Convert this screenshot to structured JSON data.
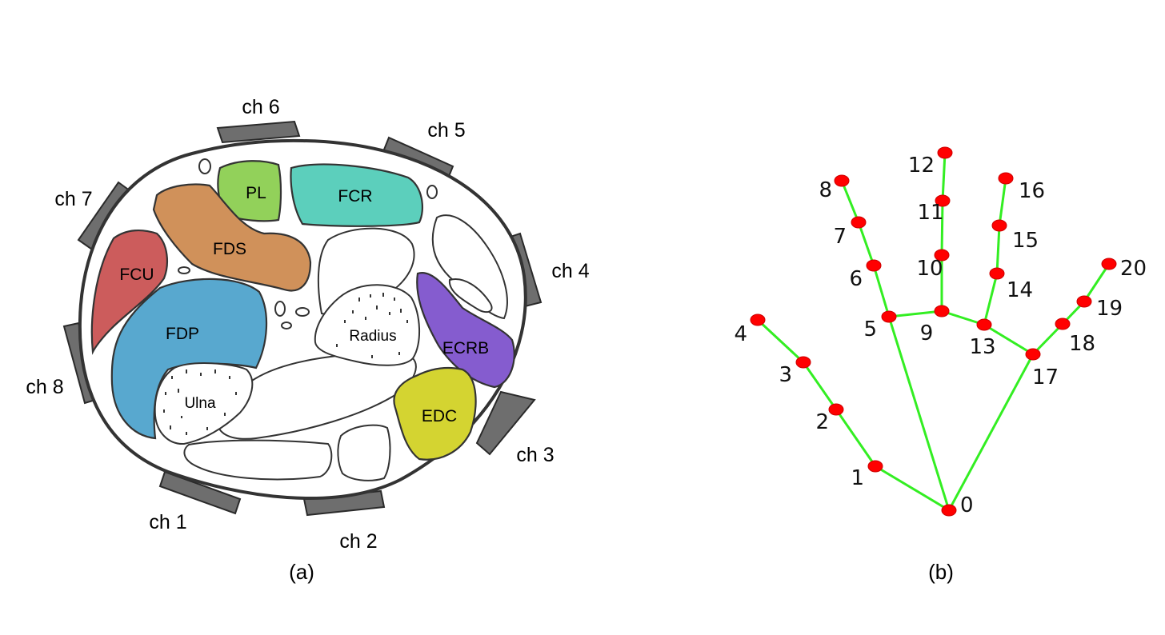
{
  "panel_a": {
    "caption": "(a)",
    "channels": [
      {
        "id": "ch1",
        "label": "ch 1"
      },
      {
        "id": "ch2",
        "label": "ch 2"
      },
      {
        "id": "ch3",
        "label": "ch 3"
      },
      {
        "id": "ch4",
        "label": "ch 4"
      },
      {
        "id": "ch5",
        "label": "ch 5"
      },
      {
        "id": "ch6",
        "label": "ch 6"
      },
      {
        "id": "ch7",
        "label": "ch 7"
      },
      {
        "id": "ch8",
        "label": "ch 8"
      }
    ],
    "muscles": [
      {
        "id": "pl",
        "label": "PL",
        "color": "#92d15a"
      },
      {
        "id": "fcr",
        "label": "FCR",
        "color": "#5ccfbc"
      },
      {
        "id": "fds",
        "label": "FDS",
        "color": "#d0915a"
      },
      {
        "id": "fcu",
        "label": "FCU",
        "color": "#cc5c5c"
      },
      {
        "id": "fdp",
        "label": "FDP",
        "color": "#58a8cf"
      },
      {
        "id": "ecrb",
        "label": "ECRB",
        "color": "#855ccf"
      },
      {
        "id": "edc",
        "label": "EDC",
        "color": "#d4d431"
      }
    ],
    "bones": [
      {
        "id": "radius",
        "label": "Radius"
      },
      {
        "id": "ulna",
        "label": "Ulna"
      }
    ]
  },
  "panel_b": {
    "caption": "(b)",
    "keypoint_color": "#ff0000",
    "edge_color": "#33ee22",
    "keypoints": [
      "0",
      "1",
      "2",
      "3",
      "4",
      "5",
      "6",
      "7",
      "8",
      "9",
      "10",
      "11",
      "12",
      "13",
      "14",
      "15",
      "16",
      "17",
      "18",
      "19",
      "20"
    ],
    "connections": [
      [
        0,
        1
      ],
      [
        1,
        2
      ],
      [
        2,
        3
      ],
      [
        3,
        4
      ],
      [
        0,
        5
      ],
      [
        5,
        6
      ],
      [
        6,
        7
      ],
      [
        7,
        8
      ],
      [
        5,
        9
      ],
      [
        9,
        10
      ],
      [
        10,
        11
      ],
      [
        11,
        12
      ],
      [
        9,
        13
      ],
      [
        13,
        14
      ],
      [
        14,
        15
      ],
      [
        15,
        16
      ],
      [
        13,
        17
      ],
      [
        0,
        17
      ],
      [
        17,
        18
      ],
      [
        18,
        19
      ],
      [
        19,
        20
      ]
    ]
  }
}
